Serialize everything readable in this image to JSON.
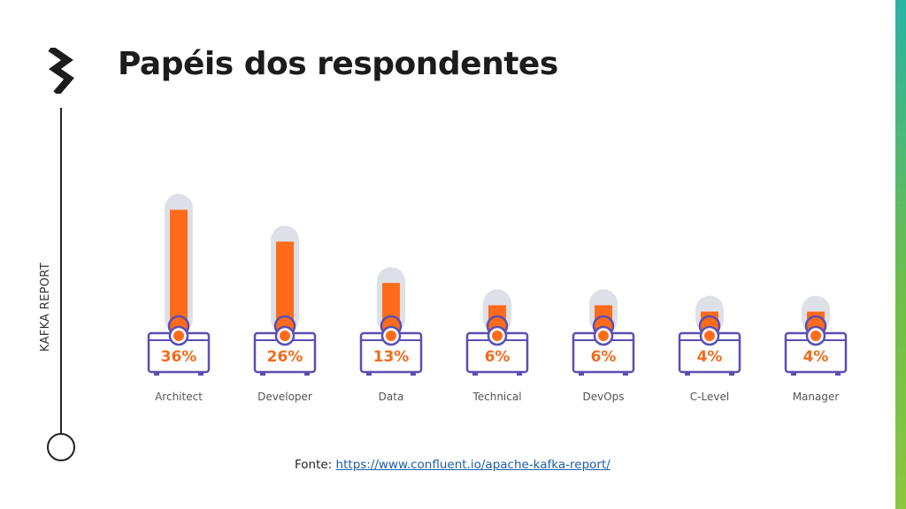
{
  "slide": {
    "title": "Papéis dos respondentes",
    "side_label": "KAFKA REPORT",
    "source_prefix": "Fonte:",
    "source_link": "https://www.confluent.io/apache-kafka-report/"
  },
  "icons": {
    "logo": "kafka-summit-bolt-icon"
  },
  "colors": {
    "bar": "#ff6b1a",
    "tube": "#dde0e7",
    "frame": "#5a4fb3",
    "value_text": "#f26a1c",
    "accent_strip": "#8cc63f"
  },
  "chart_data": {
    "type": "bar",
    "categories": [
      "Architect",
      "Developer",
      "Data",
      "Technical",
      "DevOps",
      "C-Level",
      "Manager"
    ],
    "values": [
      36,
      26,
      13,
      6,
      6,
      4,
      4
    ],
    "value_labels": [
      "36%",
      "26%",
      "13%",
      "6%",
      "6%",
      "4%",
      "4%"
    ],
    "title": "",
    "xlabel": "",
    "ylabel": "",
    "ylim": [
      0,
      40
    ],
    "grid": false,
    "legend": "none"
  }
}
